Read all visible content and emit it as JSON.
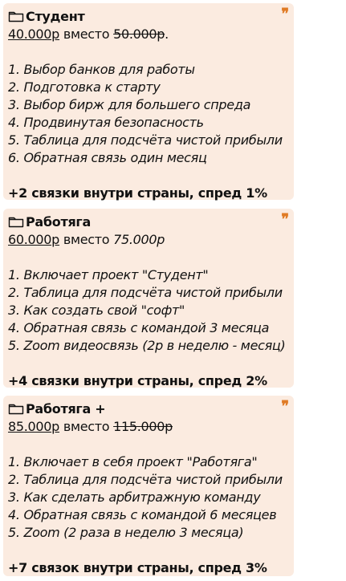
{
  "cards": [
    {
      "title": "Студент",
      "price": "40.000р",
      "instead": "вместо",
      "old_price": "50.000р",
      "after_old": ".",
      "items": [
        "1. Выбор банков для работы",
        "2. Подготовка к старту",
        "3. Выбор бирж для большего спреда",
        "4. Продвинутая безопасность",
        "5. Таблица для подсчёта чистой прибыли",
        "6. Обратная связь один месяц"
      ],
      "footer": "+2 связки внутри страны, спред 1%"
    },
    {
      "title": "Работяга",
      "price": "60.000р",
      "instead": "вместо",
      "old_price": "75.000р",
      "items": [
        "1. Включает проект \"Студент\"",
        "2. Таблица для подсчёта чистой прибыли",
        "3. Как создать свой \"софт\"",
        "4. Обратная связь с командой 3 месяца",
        "5. Zoom видеосвязь (2р в неделю - месяц)"
      ],
      "footer": "+4 связки внутри страны, спред 2%"
    },
    {
      "title": "Работяга +",
      "price": "85.000р",
      "instead": "вместо",
      "old_price": "115.000р",
      "items": [
        "1. Включает в себя проект \"Работяга\"",
        "2. Таблица для подсчёта чистой прибыли",
        "3. Как сделать арбитражную команду",
        "4. Обратная связь с командой 6 месяцев",
        "5. Zoom (2 раза в неделю 3 месяца)"
      ],
      "footer": "+7 связок внутри страны, спред 3%"
    }
  ],
  "icons": {
    "folder": "folder-icon",
    "quote": "quote-icon",
    "quote_glyph": "❞"
  },
  "colors": {
    "card_background": "#fbebe0",
    "quote_accent": "#e07b25",
    "text": "#111111"
  }
}
